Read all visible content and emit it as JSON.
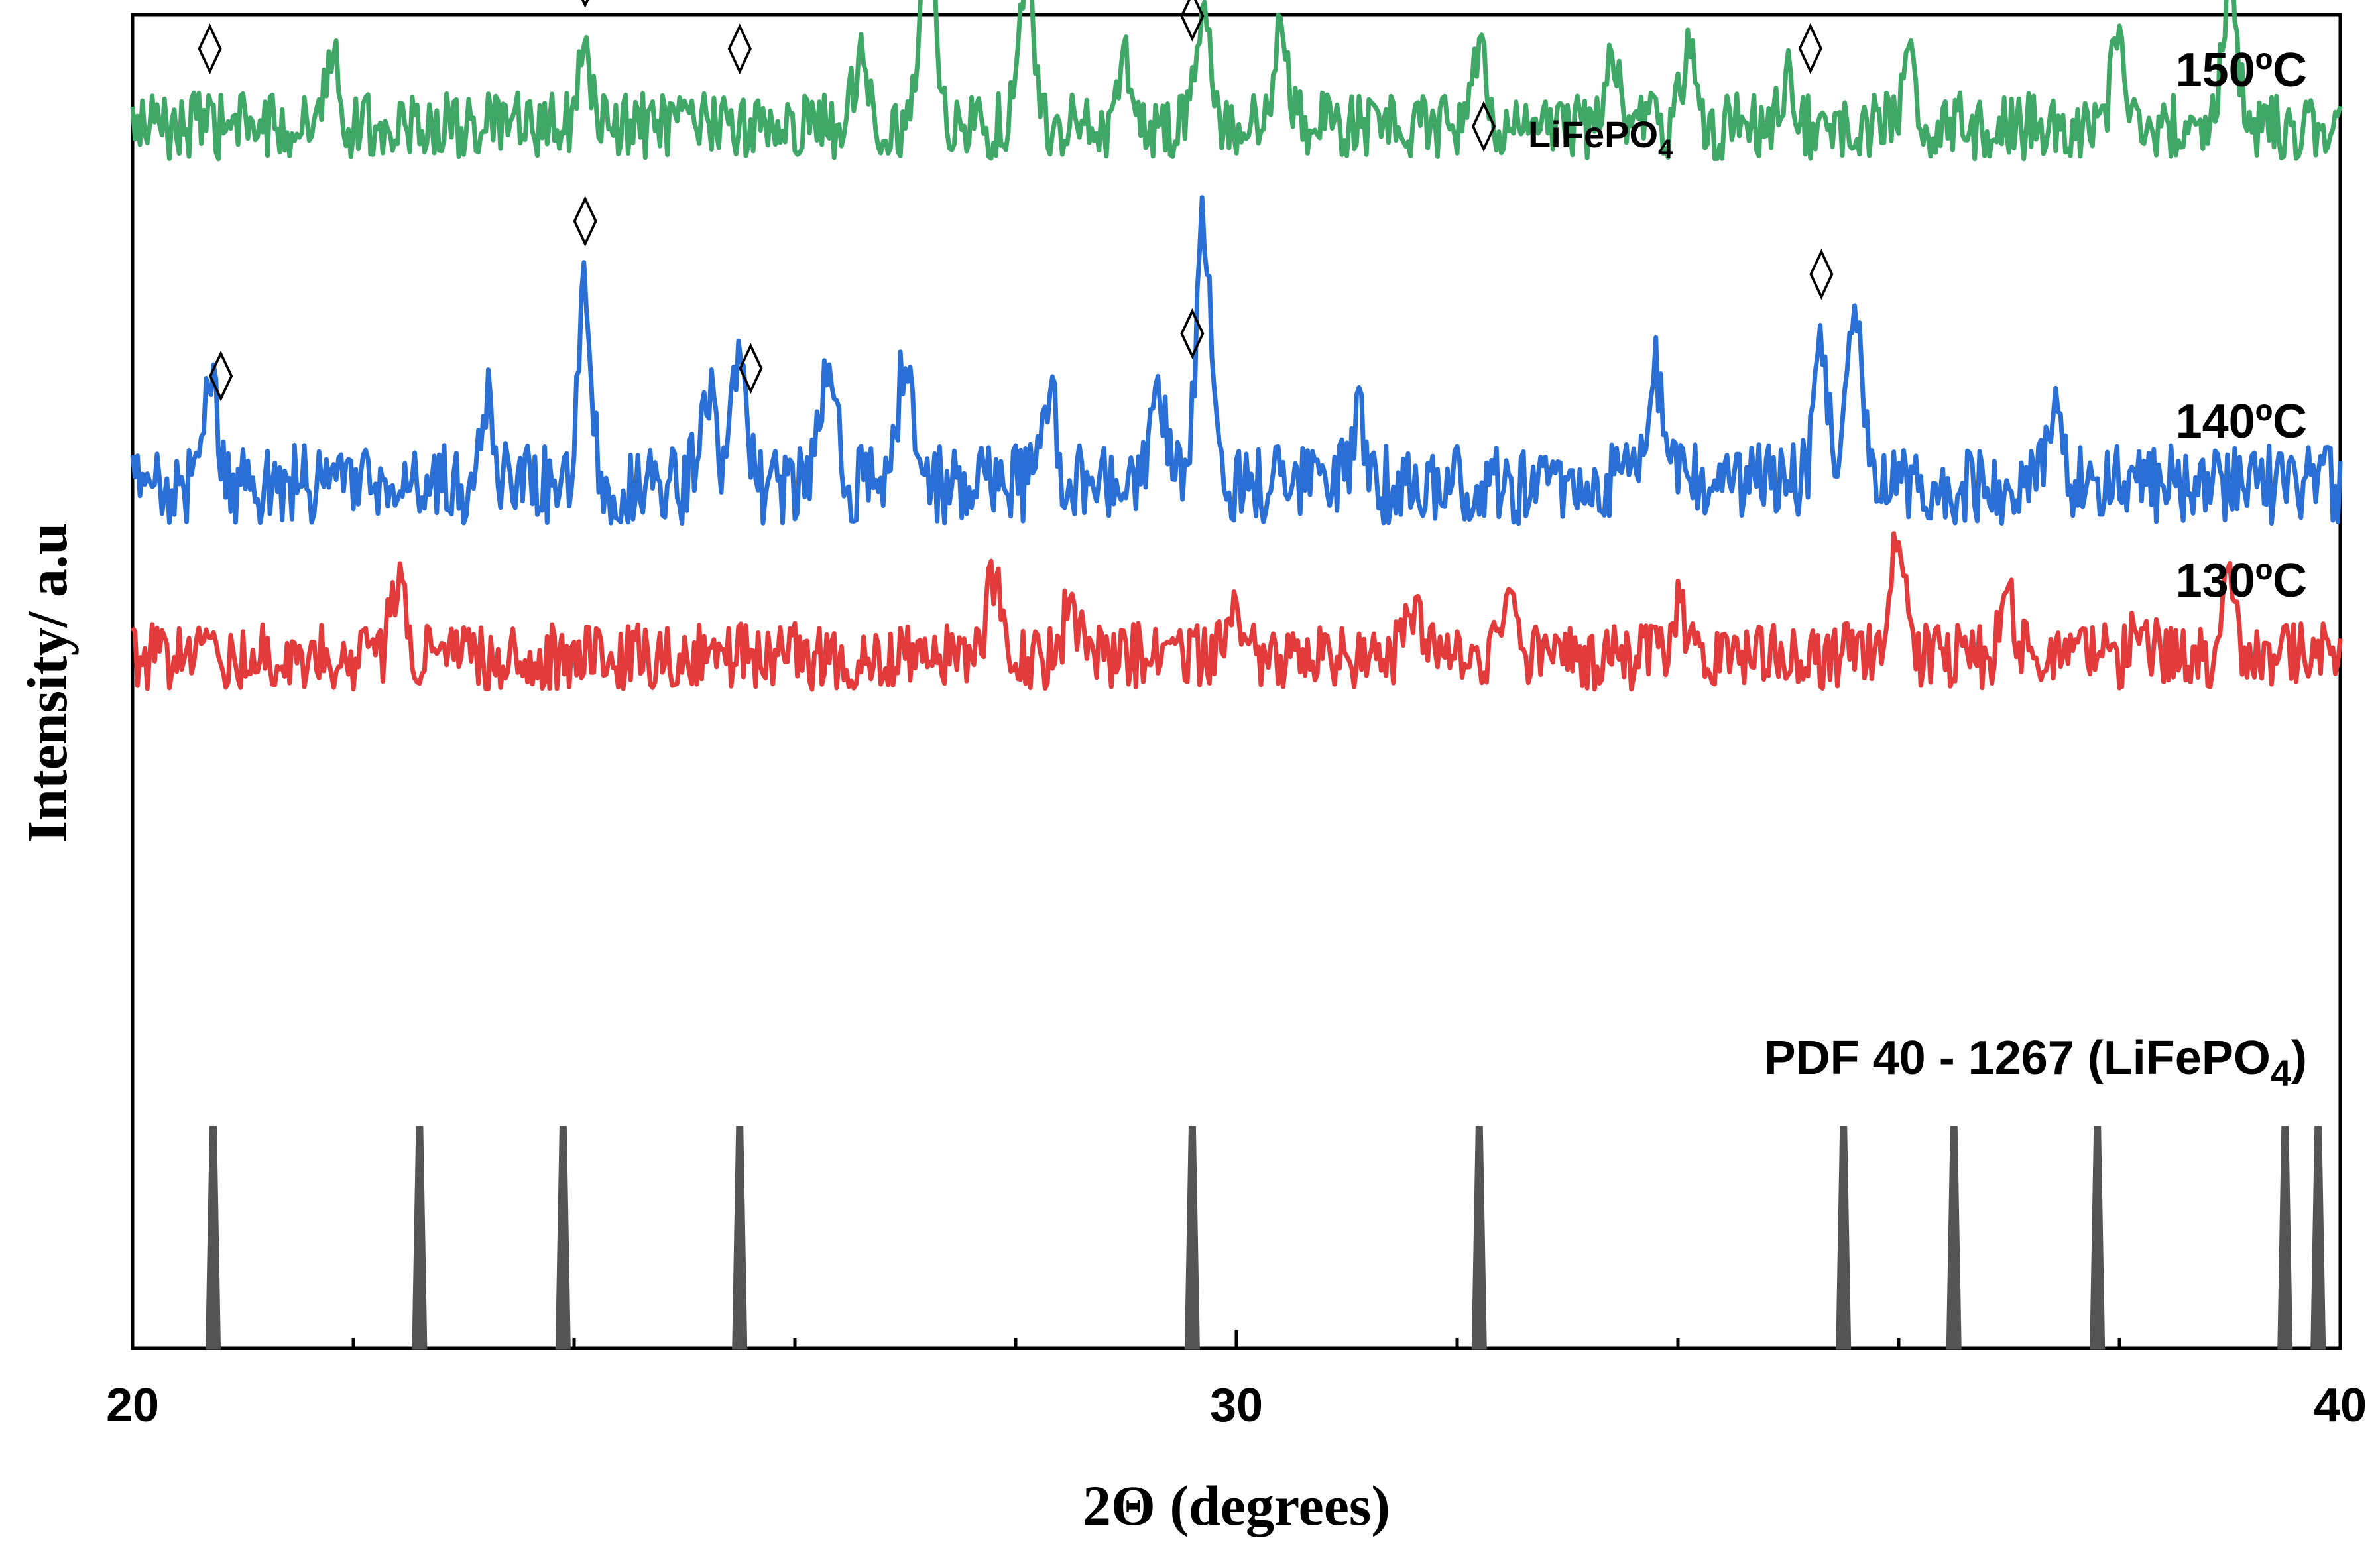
{
  "chart_data": {
    "type": "line",
    "title": "",
    "xlabel": "2Θ (degrees)",
    "ylabel": "Intensity/ a.u",
    "xlim": [
      20,
      40
    ],
    "x_ticks": [
      "20",
      "30",
      "40"
    ],
    "x_minor_step": 2,
    "y_ticks": "none",
    "grid": false,
    "legend": {
      "placement": "top-center",
      "symbol": "◊",
      "label": "LiFePO",
      "label_subscript": "4"
    },
    "series": [
      {
        "name": "150ºC",
        "color": "#3fa866",
        "baseline": 1.15,
        "noise": 0.05,
        "peaks": [
          [
            21.8,
            0.12
          ],
          [
            24.1,
            0.1
          ],
          [
            26.6,
            0.12
          ],
          [
            27.2,
            0.3
          ],
          [
            28.1,
            0.24
          ],
          [
            29.0,
            0.09
          ],
          [
            29.7,
            0.17
          ],
          [
            30.4,
            0.14
          ],
          [
            32.2,
            0.1
          ],
          [
            33.4,
            0.1
          ],
          [
            34.1,
            0.12
          ],
          [
            35.0,
            0.08
          ],
          [
            36.1,
            0.1
          ],
          [
            38.0,
            0.14
          ],
          [
            39.0,
            0.22
          ]
        ],
        "markers_at": [
          20.7,
          24.1,
          25.5,
          29.6,
          35.2
        ]
      },
      {
        "name": "140ºC",
        "color": "#2a6fd6",
        "baseline": 0.61,
        "noise": 0.06,
        "peaks": [
          [
            20.7,
            0.16
          ],
          [
            23.2,
            0.12
          ],
          [
            24.1,
            0.28
          ],
          [
            25.2,
            0.16
          ],
          [
            25.5,
            0.2
          ],
          [
            26.3,
            0.2
          ],
          [
            27.0,
            0.18
          ],
          [
            28.3,
            0.14
          ],
          [
            29.3,
            0.12
          ],
          [
            29.7,
            0.38
          ],
          [
            31.1,
            0.1
          ],
          [
            33.8,
            0.17
          ],
          [
            35.3,
            0.2
          ],
          [
            35.6,
            0.24
          ],
          [
            37.4,
            0.1
          ]
        ],
        "markers_at": [
          20.8,
          24.1,
          25.6,
          29.6,
          35.3
        ]
      },
      {
        "name": "130ºC",
        "color": "#e33b3b",
        "baseline": 0.35,
        "noise": 0.05,
        "peaks": [
          [
            22.4,
            0.1
          ],
          [
            27.8,
            0.12
          ],
          [
            28.5,
            0.08
          ],
          [
            30.0,
            0.08
          ],
          [
            31.6,
            0.08
          ],
          [
            32.5,
            0.08
          ],
          [
            34.0,
            0.08
          ],
          [
            36.0,
            0.18
          ],
          [
            37.0,
            0.08
          ],
          [
            38.2,
            0.06
          ],
          [
            39.0,
            0.1
          ]
        ],
        "markers_at": []
      }
    ],
    "reference": {
      "name": "PDF 40 - 1267 (LiFePO",
      "name_subscript": "4",
      "name_close": ")",
      "color": "#555555",
      "peaks_2theta": [
        20.73,
        22.6,
        23.9,
        25.5,
        29.6,
        32.2,
        35.5,
        36.5,
        37.8,
        39.5,
        39.8
      ],
      "relative_intensity": 1.0
    }
  }
}
